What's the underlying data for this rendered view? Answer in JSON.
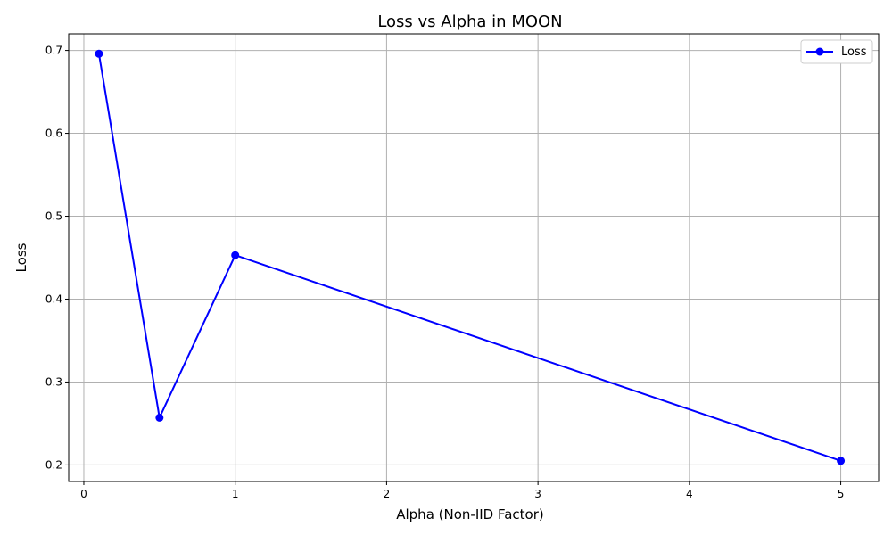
{
  "chart_data": {
    "type": "line",
    "title": "Loss vs Alpha in MOON",
    "xlabel": "Alpha (Non-IID Factor)",
    "ylabel": "Loss",
    "xlim": [
      -0.1,
      5.25
    ],
    "ylim": [
      0.18,
      0.72
    ],
    "xticks": [
      0,
      1,
      2,
      3,
      4,
      5
    ],
    "yticks": [
      0.2,
      0.3,
      0.4,
      0.5,
      0.6,
      0.7
    ],
    "xtick_labels": [
      "0",
      "1",
      "2",
      "3",
      "4",
      "5"
    ],
    "ytick_labels": [
      "0.2",
      "0.3",
      "0.4",
      "0.5",
      "0.6",
      "0.7"
    ],
    "grid": true,
    "legend_position": "top-right",
    "series": [
      {
        "name": "Loss",
        "color": "#0000ff",
        "marker": "circle",
        "x": [
          0.1,
          0.5,
          1,
          5
        ],
        "y": [
          0.696,
          0.257,
          0.453,
          0.205
        ]
      }
    ]
  }
}
